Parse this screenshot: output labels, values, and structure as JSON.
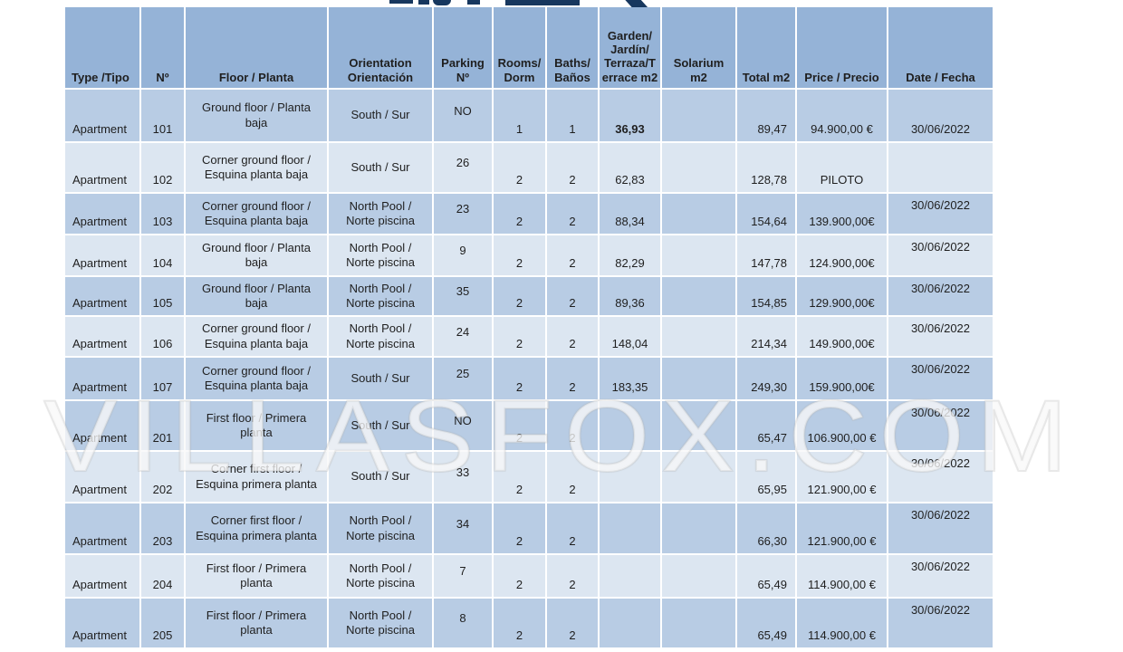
{
  "watermark": "VILLASFOX.COM",
  "colors": {
    "header_bg": "#95b3d7",
    "row_dark": "#b8cce4",
    "row_light": "#dce6f1",
    "text": "#1f1f1f",
    "top_decor": "#17375e"
  },
  "table": {
    "columns": [
      {
        "key": "type",
        "label": "Type /Tipo"
      },
      {
        "key": "no",
        "label": "Nº"
      },
      {
        "key": "floor",
        "label": "Floor  / Planta"
      },
      {
        "key": "orientation",
        "label": "Orientation\nOrientación"
      },
      {
        "key": "parking",
        "label": "Parking\nNº"
      },
      {
        "key": "rooms",
        "label": "Rooms/\nDorm"
      },
      {
        "key": "baths",
        "label": "Baths/\nBaños"
      },
      {
        "key": "garden",
        "label": "Garden/\nJardín/\nTerraza/T\nerrace m2"
      },
      {
        "key": "solarium",
        "label": "Solarium\nm2"
      },
      {
        "key": "total",
        "label": "Total m2"
      },
      {
        "key": "price",
        "label": "Price / Precio"
      },
      {
        "key": "date",
        "label": "Date / Fecha"
      }
    ],
    "rows": [
      {
        "type": "Apartment",
        "no": "101",
        "floor": "Ground floor / Planta baja",
        "orientation": "South  / Sur",
        "parking": "NO",
        "rooms": "1",
        "baths": "1",
        "garden": "36,93",
        "solarium": "",
        "total": "89,47",
        "price": "94.900,00 €",
        "date": "30/06/2022",
        "shade": "dark",
        "date_top": false,
        "garden_bold": true
      },
      {
        "type": "Apartment",
        "no": "102",
        "floor": "Corner ground floor / Esquina planta baja",
        "orientation": "South  / Sur",
        "parking": "26",
        "rooms": "2",
        "baths": "2",
        "garden": "62,83",
        "solarium": "",
        "total": "128,78",
        "price": "PILOTO",
        "date": "",
        "shade": "light",
        "date_top": false,
        "garden_bold": false
      },
      {
        "type": "Apartment",
        "no": "103",
        "floor": "Corner ground floor / Esquina planta baja",
        "orientation": "North Pool / Norte piscina",
        "parking": "23",
        "rooms": "2",
        "baths": "2",
        "garden": "88,34",
        "solarium": "",
        "total": "154,64",
        "price": "139.900,00€",
        "date": "30/06/2022",
        "shade": "dark",
        "date_top": true,
        "garden_bold": false
      },
      {
        "type": "Apartment",
        "no": "104",
        "floor": "Ground floor / Planta baja",
        "orientation": "North Pool / Norte piscina",
        "parking": "9",
        "rooms": "2",
        "baths": "2",
        "garden": "82,29",
        "solarium": "",
        "total": "147,78",
        "price": "124.900,00€",
        "date": "30/06/2022",
        "shade": "light",
        "date_top": true,
        "garden_bold": false
      },
      {
        "type": "Apartment",
        "no": "105",
        "floor": "Ground floor / Planta baja",
        "orientation": "North Pool / Norte piscina",
        "parking": "35",
        "rooms": "2",
        "baths": "2",
        "garden": "89,36",
        "solarium": "",
        "total": "154,85",
        "price": "129.900,00€",
        "date": "30/06/2022",
        "shade": "dark",
        "date_top": true,
        "garden_bold": false
      },
      {
        "type": "Apartment",
        "no": "106",
        "floor": "Corner ground floor / Esquina planta baja",
        "orientation": "North Pool / Norte piscina",
        "parking": "24",
        "rooms": "2",
        "baths": "2",
        "garden": "148,04",
        "solarium": "",
        "total": "214,34",
        "price": "149.900,00€",
        "date": "30/06/2022",
        "shade": "light",
        "date_top": true,
        "garden_bold": false
      },
      {
        "type": "Apartment",
        "no": "107",
        "floor": "Corner ground floor / Esquina planta baja",
        "orientation": "South  / Sur",
        "parking": "25",
        "rooms": "2",
        "baths": "2",
        "garden": "183,35",
        "solarium": "",
        "total": "249,30",
        "price": "159.900,00€",
        "date": "30/06/2022",
        "shade": "dark",
        "date_top": true,
        "garden_bold": false
      },
      {
        "type": "Apartment",
        "no": "201",
        "floor": "First floor / Primera planta",
        "orientation": "South  / Sur",
        "parking": "NO",
        "rooms": "2",
        "baths": "2",
        "garden": "",
        "solarium": "",
        "total": "65,47",
        "price": "106.900,00 €",
        "date": "30/06/2022",
        "shade": "dark",
        "date_top": true,
        "garden_bold": false
      },
      {
        "type": "Apartment",
        "no": "202",
        "floor": "Corner first floor / Esquina primera planta",
        "orientation": "South  / Sur",
        "parking": "33",
        "rooms": "2",
        "baths": "2",
        "garden": "",
        "solarium": "",
        "total": "65,95",
        "price": "121.900,00 €",
        "date": "30/06/2022",
        "shade": "light",
        "date_top": true,
        "garden_bold": false
      },
      {
        "type": "Apartment",
        "no": "203",
        "floor": "Corner first floor / Esquina primera planta",
        "orientation": "North Pool / Norte piscina",
        "parking": "34",
        "rooms": "2",
        "baths": "2",
        "garden": "",
        "solarium": "",
        "total": "66,30",
        "price": "121.900,00 €",
        "date": "30/06/2022",
        "shade": "dark",
        "date_top": true,
        "garden_bold": false
      },
      {
        "type": "Apartment",
        "no": "204",
        "floor": "First floor / Primera planta",
        "orientation": "North Pool / Norte piscina",
        "parking": "7",
        "rooms": "2",
        "baths": "2",
        "garden": "",
        "solarium": "",
        "total": "65,49",
        "price": "114.900,00 €",
        "date": "30/06/2022",
        "shade": "light",
        "date_top": true,
        "garden_bold": false
      },
      {
        "type": "Apartment",
        "no": "205",
        "floor": "First floor / Primera planta",
        "orientation": "North Pool / Norte piscina",
        "parking": "8",
        "rooms": "2",
        "baths": "2",
        "garden": "",
        "solarium": "",
        "total": "65,49",
        "price": "114.900,00 €",
        "date": "30/06/2022",
        "shade": "dark",
        "date_top": true,
        "garden_bold": false
      }
    ]
  }
}
